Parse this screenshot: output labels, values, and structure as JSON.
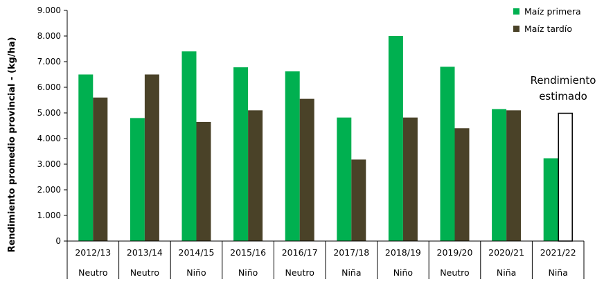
{
  "chart_data": {
    "type": "bar",
    "ylabel": "Rendimiento promedio provincial - (kg/ha)",
    "xlabel": "",
    "ylim": [
      0,
      9000
    ],
    "ytick_step": 1000,
    "ytick_labels": [
      "0",
      "1.000",
      "2.000",
      "3.000",
      "4.000",
      "5.000",
      "6.000",
      "7.000",
      "8.000",
      "9.000"
    ],
    "grid": false,
    "legend_position": "top-right",
    "categories": [
      "2012/13",
      "2013/14",
      "2014/15",
      "2015/16",
      "2016/17",
      "2017/18",
      "2018/19",
      "2019/20",
      "2020/21",
      "2021/22"
    ],
    "phases": [
      "Neutro",
      "Neutro",
      "Niño",
      "Niño",
      "Neutro",
      "Niña",
      "Niño",
      "Neutro",
      "Niña",
      "Niña"
    ],
    "series": [
      {
        "name": "Maíz primera",
        "color": "#00b050",
        "values": [
          6500,
          4800,
          7400,
          6780,
          6620,
          4820,
          8000,
          6800,
          5150,
          3230
        ]
      },
      {
        "name": "Maíz tardío",
        "color": "#4a4228",
        "values": [
          5600,
          6500,
          4650,
          5100,
          5550,
          3180,
          4820,
          4400,
          5100,
          5000
        ],
        "estimated_index": 9
      }
    ],
    "annotation": {
      "lines": [
        "Rendimiento",
        "estimado"
      ]
    }
  }
}
